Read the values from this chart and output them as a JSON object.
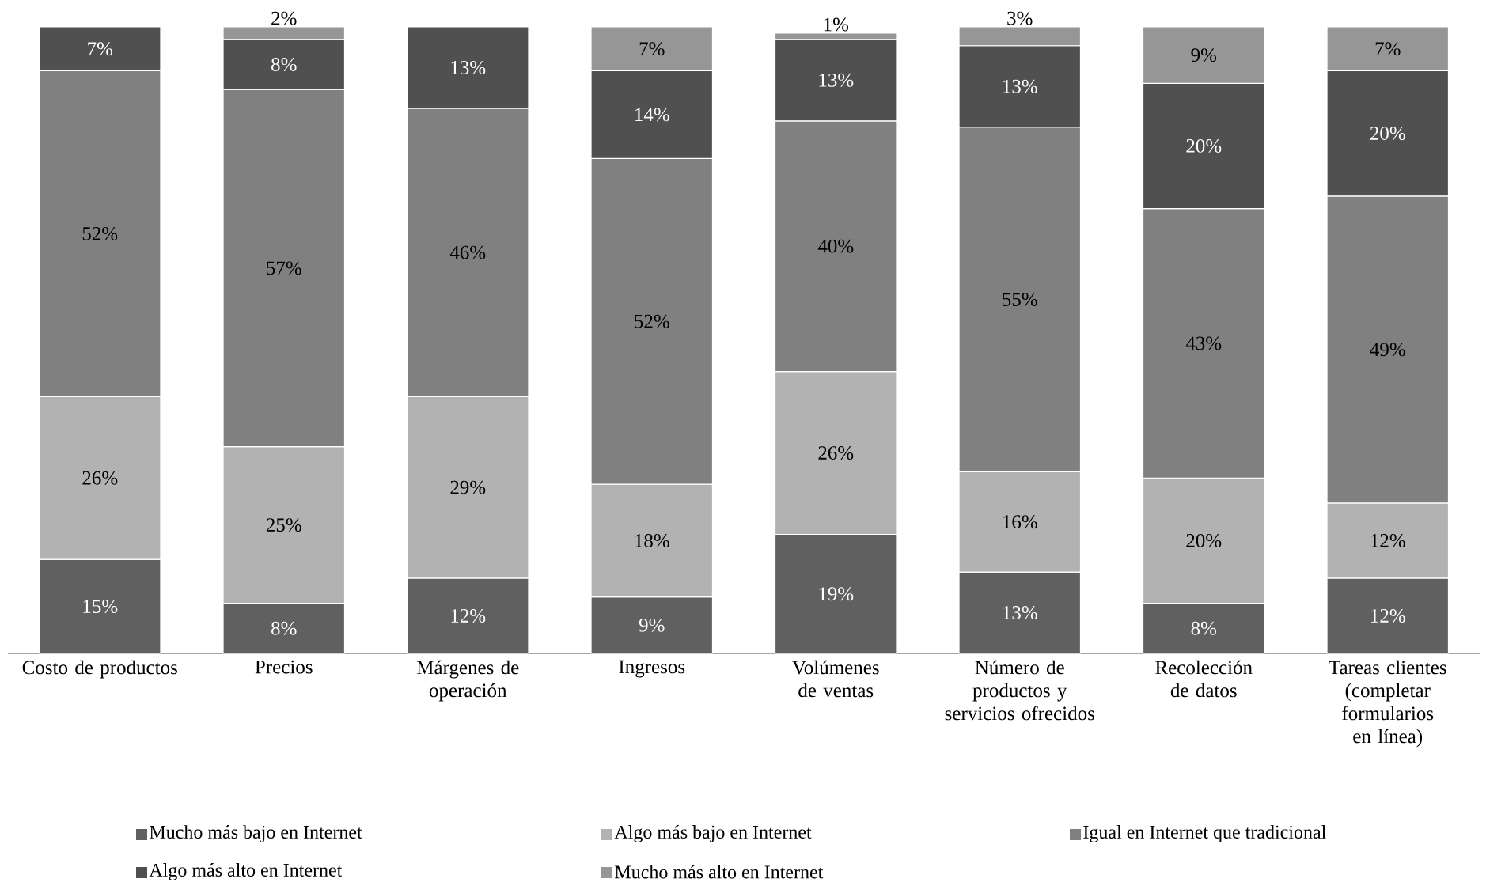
{
  "chart_data": {
    "type": "bar",
    "stacked": true,
    "legend": "bottom",
    "tick_labels": "x",
    "ylim": [
      0,
      100
    ],
    "categories": [
      "Costo de productos",
      "Precios",
      "Márgenes de operación",
      "Ingresos",
      "Volúmenes de ventas",
      "Número de productos y servicios ofrecidos",
      "Recolección de datos",
      "Tareas clientes (completar formularios en línea)"
    ],
    "series": [
      {
        "name": "Mucho más bajo en Internet",
        "color": "#606060",
        "values": [
          15,
          8,
          12,
          9,
          19,
          13,
          8,
          12
        ],
        "value_labels": [
          "15%",
          "8%",
          "12%",
          "9%",
          "19%",
          "13%",
          "8%",
          "12%"
        ]
      },
      {
        "name": "Algo más bajo en Internet",
        "color": "#b2b2b2",
        "values": [
          26,
          25,
          29,
          18,
          26,
          16,
          20,
          12
        ],
        "value_labels": [
          "26%",
          "25%",
          "29%",
          "18%",
          "26%",
          "16%",
          "20%",
          "12%"
        ]
      },
      {
        "name": "Igual en Internet que tradicional",
        "color": "#808080",
        "values": [
          52,
          57,
          46,
          52,
          40,
          55,
          43,
          49
        ],
        "value_labels": [
          "52%",
          "57%",
          "46%",
          "52%",
          "40%",
          "55%",
          "43%",
          "49%"
        ]
      },
      {
        "name": "Algo más alto en Internet",
        "color": "#505050",
        "values": [
          7,
          8,
          13,
          14,
          13,
          13,
          20,
          20
        ],
        "value_labels": [
          "7%",
          "8%",
          "13%",
          "14%",
          "13%",
          "13%",
          "20%",
          "20%"
        ]
      },
      {
        "name": "Mucho más alto en Internet",
        "color": "#969696",
        "values": [
          null,
          2,
          null,
          7,
          1,
          3,
          9,
          7
        ],
        "value_labels": [
          null,
          "2%",
          null,
          "7%",
          "1%",
          "3%",
          "9%",
          "7%"
        ]
      }
    ]
  }
}
